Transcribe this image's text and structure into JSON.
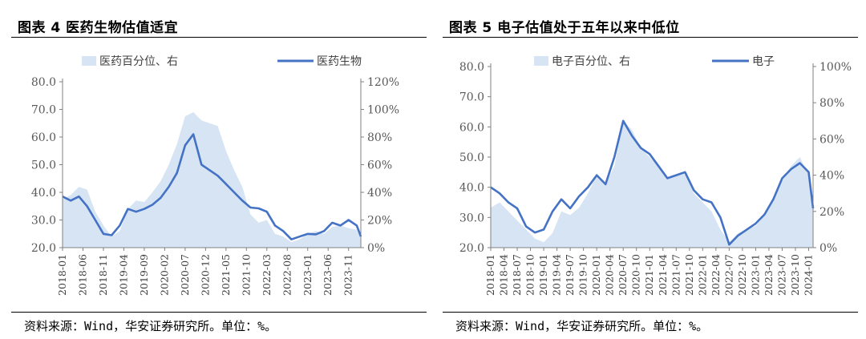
{
  "charts": [
    {
      "figure_label": "图表 4  医药生物估值适宜",
      "source": "资料来源：Wind，华安证券研究所。单位：%。",
      "chart_data": {
        "type": "line",
        "title": "图表 4  医药生物估值适宜",
        "xlabel": "",
        "ylabel": "",
        "ylim": [
          20,
          80
        ],
        "y2lim": [
          0,
          120
        ],
        "y_ticks": [
          "80.0",
          "70.0",
          "60.0",
          "50.0",
          "40.0",
          "30.0",
          "20.0"
        ],
        "y2_ticks": [
          "120%",
          "100%",
          "80%",
          "60%",
          "40%",
          "20%",
          "0%"
        ],
        "x_range": [
          "2018-01",
          "2024-02"
        ],
        "x_ticks": [
          "2018-01",
          "2018-06",
          "2018-11",
          "2019-04",
          "2019-09",
          "2020-02",
          "2020-07",
          "2020-12",
          "2021-05",
          "2021-10",
          "2022-03",
          "2022-08",
          "2023-01",
          "2023-06",
          "2023-11"
        ],
        "legend": "top",
        "grid": false,
        "series": [
          {
            "name": "医药百分位、右",
            "kind": "area",
            "axis": "right",
            "color": "#d6e4f3",
            "x": [
              "2018-01",
              "2018-03",
              "2018-05",
              "2018-07",
              "2018-09",
              "2018-11",
              "2019-01",
              "2019-03",
              "2019-05",
              "2019-07",
              "2019-09",
              "2019-11",
              "2020-01",
              "2020-03",
              "2020-05",
              "2020-07",
              "2020-09",
              "2020-11",
              "2021-01",
              "2021-03",
              "2021-05",
              "2021-07",
              "2021-09",
              "2021-11",
              "2022-01",
              "2022-03",
              "2022-05",
              "2022-07",
              "2022-09",
              "2022-11",
              "2023-01",
              "2023-03",
              "2023-05",
              "2023-07",
              "2023-09",
              "2023-11",
              "2024-01",
              "2024-02"
            ],
            "values": [
              35,
              38,
              44,
              42,
              26,
              16,
              8,
              12,
              28,
              34,
              33,
              40,
              48,
              60,
              75,
              95,
              98,
              92,
              90,
              88,
              70,
              56,
              44,
              24,
              18,
              20,
              10,
              8,
              4,
              6,
              10,
              12,
              10,
              15,
              16,
              14,
              13,
              6
            ]
          },
          {
            "name": "医药生物",
            "kind": "line",
            "axis": "left",
            "color": "#4472c4",
            "x": [
              "2018-01",
              "2018-03",
              "2018-05",
              "2018-07",
              "2018-09",
              "2018-11",
              "2019-01",
              "2019-03",
              "2019-05",
              "2019-07",
              "2019-09",
              "2019-11",
              "2020-01",
              "2020-03",
              "2020-05",
              "2020-07",
              "2020-09",
              "2020-11",
              "2021-01",
              "2021-03",
              "2021-05",
              "2021-07",
              "2021-09",
              "2021-11",
              "2022-01",
              "2022-03",
              "2022-05",
              "2022-07",
              "2022-09",
              "2022-11",
              "2023-01",
              "2023-03",
              "2023-05",
              "2023-07",
              "2023-09",
              "2023-11",
              "2024-01",
              "2024-02"
            ],
            "values": [
              38.5,
              37,
              38.5,
              35,
              30,
              25,
              24.5,
              28,
              34,
              33,
              34,
              35.5,
              38,
              42,
              47,
              57,
              61,
              50,
              48,
              46,
              43,
              40,
              37,
              34.5,
              34.2,
              33,
              28,
              26,
              23,
              24,
              25,
              24.8,
              26,
              29,
              28,
              30,
              28,
              24
            ]
          }
        ]
      }
    },
    {
      "figure_label": "图表 5  电子估值处于五年以来中低位",
      "source": "资料来源：Wind，华安证券研究所。单位：%。",
      "chart_data": {
        "type": "line",
        "title": "图表 5  电子估值处于五年以来中低位",
        "xlabel": "",
        "ylabel": "",
        "ylim": [
          20,
          80
        ],
        "y2lim": [
          0,
          100
        ],
        "y_ticks": [
          "80.0",
          "70.0",
          "60.0",
          "50.0",
          "40.0",
          "30.0",
          "20.0"
        ],
        "y2_ticks": [
          "100%",
          "80%",
          "60%",
          "40%",
          "20%",
          "0%"
        ],
        "x_range": [
          "2018-01",
          "2024-02"
        ],
        "x_ticks": [
          "2018-01",
          "2018-04",
          "2018-07",
          "2018-10",
          "2019-01",
          "2019-04",
          "2019-07",
          "2019-10",
          "2020-01",
          "2020-04",
          "2020-07",
          "2020-10",
          "2021-01",
          "2021-04",
          "2021-07",
          "2021-10",
          "2022-01",
          "2022-04",
          "2022-07",
          "2022-10",
          "2023-01",
          "2023-04",
          "2023-07",
          "2023-10",
          "2024-01"
        ],
        "legend": "top",
        "grid": false,
        "series": [
          {
            "name": "电子百分位、右",
            "kind": "area",
            "axis": "right",
            "color": "#d6e4f3",
            "x": [
              "2018-01",
              "2018-03",
              "2018-05",
              "2018-07",
              "2018-09",
              "2018-11",
              "2019-01",
              "2019-03",
              "2019-05",
              "2019-07",
              "2019-09",
              "2019-11",
              "2020-01",
              "2020-03",
              "2020-05",
              "2020-07",
              "2020-09",
              "2020-11",
              "2021-01",
              "2021-03",
              "2021-05",
              "2021-07",
              "2021-09",
              "2021-11",
              "2022-01",
              "2022-03",
              "2022-05",
              "2022-07",
              "2022-09",
              "2022-11",
              "2023-01",
              "2023-03",
              "2023-05",
              "2023-07",
              "2023-09",
              "2023-11",
              "2024-01",
              "2024-02"
            ],
            "values": [
              22,
              25,
              20,
              15,
              10,
              5,
              3,
              8,
              20,
              18,
              22,
              30,
              40,
              35,
              45,
              70,
              65,
              55,
              50,
              45,
              38,
              40,
              42,
              30,
              25,
              20,
              10,
              3,
              8,
              10,
              12,
              18,
              28,
              38,
              45,
              50,
              40,
              20
            ]
          },
          {
            "name": "电子",
            "kind": "line",
            "axis": "left",
            "color": "#4472c4",
            "x": [
              "2018-01",
              "2018-03",
              "2018-05",
              "2018-07",
              "2018-09",
              "2018-11",
              "2019-01",
              "2019-03",
              "2019-05",
              "2019-07",
              "2019-09",
              "2019-11",
              "2020-01",
              "2020-03",
              "2020-05",
              "2020-07",
              "2020-09",
              "2020-11",
              "2021-01",
              "2021-03",
              "2021-05",
              "2021-07",
              "2021-09",
              "2021-11",
              "2022-01",
              "2022-03",
              "2022-05",
              "2022-07",
              "2022-09",
              "2022-11",
              "2023-01",
              "2023-03",
              "2023-05",
              "2023-07",
              "2023-09",
              "2023-11",
              "2024-01",
              "2024-02"
            ],
            "values": [
              40,
              38,
              35,
              33,
              27,
              25,
              26,
              32,
              36,
              33,
              37,
              40,
              44,
              41,
              50,
              62,
              57,
              53,
              51,
              47,
              43,
              44,
              45,
              39,
              36,
              35,
              30,
              21,
              24,
              26,
              28,
              31,
              36,
              43,
              46,
              48,
              45,
              33
            ]
          }
        ]
      }
    }
  ]
}
